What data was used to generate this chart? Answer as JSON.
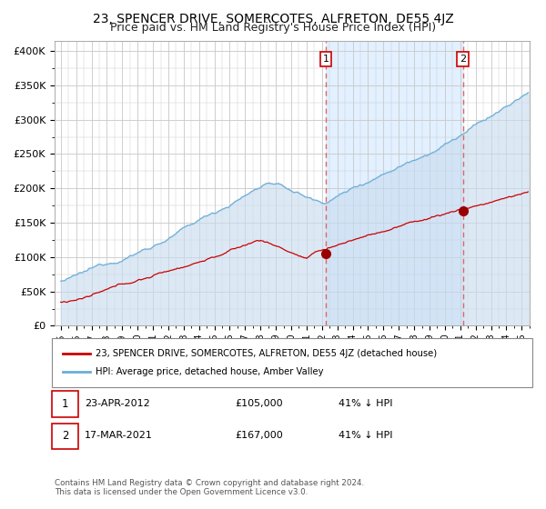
{
  "title": "23, SPENCER DRIVE, SOMERCOTES, ALFRETON, DE55 4JZ",
  "subtitle": "Price paid vs. HM Land Registry's House Price Index (HPI)",
  "hpi_line_color": "#6baed6",
  "hpi_fill_color": "#c6dbef",
  "price_color": "#cc0000",
  "marker_color": "#990000",
  "vline_color": "#dd6666",
  "bg_color": "#ffffff",
  "shade_color": "#ddeeff",
  "grid_color": "#c8c8c8",
  "yticks": [
    0,
    50000,
    100000,
    150000,
    200000,
    250000,
    300000,
    350000,
    400000
  ],
  "ytick_labels": [
    "£0",
    "£50K",
    "£100K",
    "£150K",
    "£200K",
    "£250K",
    "£300K",
    "£350K",
    "£400K"
  ],
  "legend_line1": "23, SPENCER DRIVE, SOMERCOTES, ALFRETON, DE55 4JZ (detached house)",
  "legend_line2": "HPI: Average price, detached house, Amber Valley",
  "annotation1_label": "1",
  "annotation1_date": "23-APR-2012",
  "annotation1_price": "£105,000",
  "annotation1_pct": "41% ↓ HPI",
  "annotation2_label": "2",
  "annotation2_date": "17-MAR-2021",
  "annotation2_price": "£167,000",
  "annotation2_pct": "41% ↓ HPI",
  "footer": "Contains HM Land Registry data © Crown copyright and database right 2024.\nThis data is licensed under the Open Government Licence v3.0.",
  "title_fontsize": 10,
  "subtitle_fontsize": 9
}
